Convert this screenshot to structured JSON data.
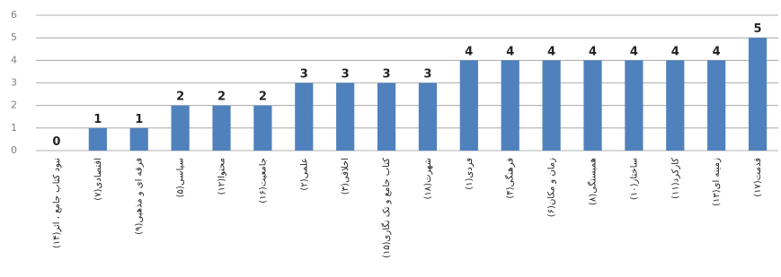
{
  "chart_data": {
    "type": "bar",
    "categories": [
      "نبود کتاب جامع ، اثر(۱۴)",
      "اقتصادی(۷)",
      "فرقه ای و مذهبی(۹)",
      "سیاسی(۵)",
      "محتوا(۱۲)",
      "جامعیت(۱۶)",
      "علمی(۲)",
      "اخلاقی(۳)",
      "کتاب جامع و تک نگاری(۱۵)",
      "شهرت(۱۸)",
      "فردی(۱)",
      "فرهنگی(۴)",
      "زمان و مکان(۶)",
      "همبستگی(۸)",
      "ساختار(۱۰)",
      "کارکرد(۱۱)",
      "زمینه ای(۱۳)",
      "قدمت(۱۷)"
    ],
    "values": [
      0,
      1,
      1,
      2,
      2,
      2,
      3,
      3,
      3,
      3,
      4,
      4,
      4,
      4,
      4,
      4,
      4,
      5
    ],
    "color": "#4f81bd",
    "ylim": [
      0,
      6
    ],
    "yticks": [
      0,
      1,
      2,
      3,
      4,
      5,
      6
    ],
    "grid": true
  }
}
